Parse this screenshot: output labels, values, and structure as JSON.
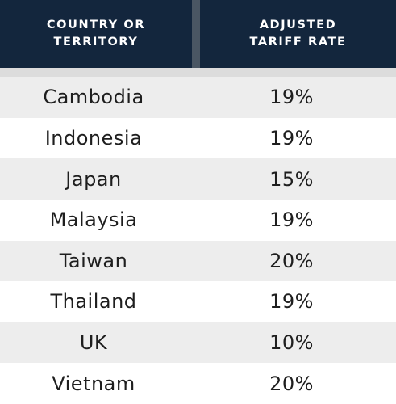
{
  "table": {
    "header": [
      "COUNTRY OR TERRITORY",
      "ADJUSTED TARIFF RATE"
    ],
    "rows": [
      [
        "Cambodia",
        "19%"
      ],
      [
        "Indonesia",
        "19%"
      ],
      [
        "Japan",
        "15%"
      ],
      [
        "Malaysia",
        "19%"
      ],
      [
        "Taiwan",
        "20%"
      ],
      [
        "Thailand",
        "19%"
      ],
      [
        "UK",
        "10%"
      ],
      [
        "Vietnam",
        "20%"
      ]
    ]
  }
}
